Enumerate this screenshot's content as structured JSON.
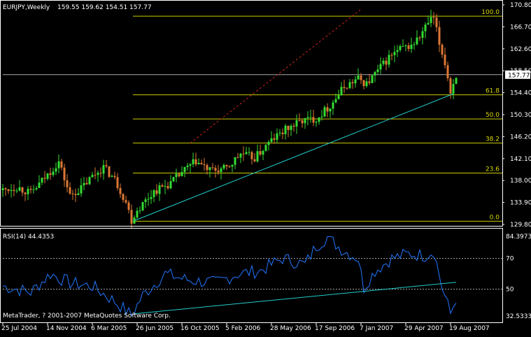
{
  "header": {
    "symbol_label": "EURJPY,Weekly",
    "ohlc_label": "159.55 159.62 154.51 157.77"
  },
  "colors": {
    "background": "#000000",
    "frame": "#ffffff",
    "bull_candle": "#33dd33",
    "bear_candle": "#dd7733",
    "fib_line": "#cccc00",
    "trendline": "#22cccc",
    "channel_line": "#cc2222",
    "rsi_line": "#2277ff",
    "rsi_level": "#aaaaaa",
    "price_line": "#aaaaaa"
  },
  "price_axis": {
    "ticks": [
      "170.80",
      "166.70",
      "162.60",
      "158.50",
      "154.40",
      "150.30",
      "146.20",
      "142.10",
      "138.00",
      "133.90",
      "129.80"
    ],
    "current_price": "157.77"
  },
  "fib_levels": [
    {
      "label": "100.0",
      "price": 168.7
    },
    {
      "label": "61.8",
      "price": 154.0
    },
    {
      "label": "50.0",
      "price": 149.5
    },
    {
      "label": "38.2",
      "price": 145.0
    },
    {
      "label": "23.6",
      "price": 139.4
    },
    {
      "label": "0.0",
      "price": 130.4
    }
  ],
  "x_axis": {
    "ticks": [
      "25 Jul 2004",
      "14 Nov 2004",
      "6 Mar 2005",
      "26 Jun 2005",
      "16 Oct 2005",
      "5 Feb 2006",
      "28 May 2006",
      "17 Sep 2006",
      "7 Jan 2007",
      "29 Apr 2007",
      "19 Aug 2007"
    ]
  },
  "rsi": {
    "title": "RSI(14) 44.4353",
    "axis_labels": [
      "84.3973",
      "70",
      "50",
      "32.5333"
    ],
    "levels": [
      70,
      50
    ],
    "ylim": [
      32.5333,
      84.3973
    ]
  },
  "footer": {
    "copyright": "MetaTrader, ? 2001-2007 MetaQuotes Software Corp."
  },
  "chart_data": {
    "type": "candlestick",
    "title": "EURJPY,Weekly",
    "x_start": "25 Jul 2004",
    "x_end": "19 Aug 2007",
    "ylim": [
      129.8,
      170.8
    ],
    "anchors": [
      [
        "2004-07-25",
        136.2
      ],
      [
        "2004-08-29",
        136.8
      ],
      [
        "2004-10-03",
        135.6
      ],
      [
        "2004-11-07",
        138.5
      ],
      [
        "2004-12-12",
        141.5
      ],
      [
        "2005-01-09",
        135.2
      ],
      [
        "2005-02-06",
        136.5
      ],
      [
        "2005-03-06",
        138.8
      ],
      [
        "2005-04-03",
        140.5
      ],
      [
        "2005-05-01",
        138.2
      ],
      [
        "2005-05-29",
        134.0
      ],
      [
        "2005-06-12",
        130.6
      ],
      [
        "2005-06-26",
        132.5
      ],
      [
        "2005-08-07",
        136.0
      ],
      [
        "2005-09-18",
        137.5
      ],
      [
        "2005-10-16",
        139.5
      ],
      [
        "2005-11-20",
        141.6
      ],
      [
        "2005-12-25",
        139.8
      ],
      [
        "2006-02-05",
        140.2
      ],
      [
        "2006-03-12",
        143.0
      ],
      [
        "2006-04-16",
        142.2
      ],
      [
        "2006-05-28",
        145.5
      ],
      [
        "2006-07-02",
        147.5
      ],
      [
        "2006-08-13",
        149.2
      ],
      [
        "2006-09-17",
        149.6
      ],
      [
        "2006-10-22",
        152.0
      ],
      [
        "2006-11-26",
        155.5
      ],
      [
        "2006-12-31",
        157.0
      ],
      [
        "2007-01-21",
        156.0
      ],
      [
        "2007-02-18",
        158.5
      ],
      [
        "2007-03-18",
        161.0
      ],
      [
        "2007-04-15",
        162.5
      ],
      [
        "2007-05-13",
        163.2
      ],
      [
        "2007-06-03",
        164.8
      ],
      [
        "2007-06-24",
        167.5
      ],
      [
        "2007-07-08",
        168.3
      ],
      [
        "2007-07-22",
        163.5
      ],
      [
        "2007-08-05",
        160.0
      ],
      [
        "2007-08-19",
        154.5
      ],
      [
        "2007-09-02",
        157.77
      ]
    ],
    "rsi_anchors": [
      [
        "2004-07-25",
        52
      ],
      [
        "2004-10-03",
        48
      ],
      [
        "2004-11-21",
        60
      ],
      [
        "2005-01-09",
        54
      ],
      [
        "2005-03-06",
        52
      ],
      [
        "2005-05-01",
        42
      ],
      [
        "2005-06-12",
        33
      ],
      [
        "2005-07-10",
        46
      ],
      [
        "2005-09-04",
        60
      ],
      [
        "2005-10-30",
        56
      ],
      [
        "2006-01-08",
        54
      ],
      [
        "2006-03-05",
        60
      ],
      [
        "2006-04-30",
        62
      ],
      [
        "2006-06-25",
        70
      ],
      [
        "2006-08-20",
        66
      ],
      [
        "2006-09-17",
        78
      ],
      [
        "2006-10-15",
        84
      ],
      [
        "2006-11-19",
        76
      ],
      [
        "2006-12-31",
        70
      ],
      [
        "2007-01-14",
        51
      ],
      [
        "2007-02-11",
        62
      ],
      [
        "2007-03-25",
        70
      ],
      [
        "2007-05-06",
        73
      ],
      [
        "2007-06-17",
        72
      ],
      [
        "2007-07-08",
        75
      ],
      [
        "2007-07-29",
        51
      ],
      [
        "2007-08-19",
        34
      ],
      [
        "2007-09-02",
        44.4
      ]
    ],
    "overlays": {
      "trendline": [
        [
          "2005-06-19",
          130.5
        ],
        [
          "2007-08-26",
          154.2
        ]
      ],
      "channel_line": [
        [
          "2005-11-06",
          145.0
        ],
        [
          "2007-01-21",
          170.8
        ]
      ],
      "rsi_trendline": [
        [
          "2005-06-19",
          34
        ],
        [
          "2007-09-02",
          54.5
        ]
      ]
    }
  }
}
